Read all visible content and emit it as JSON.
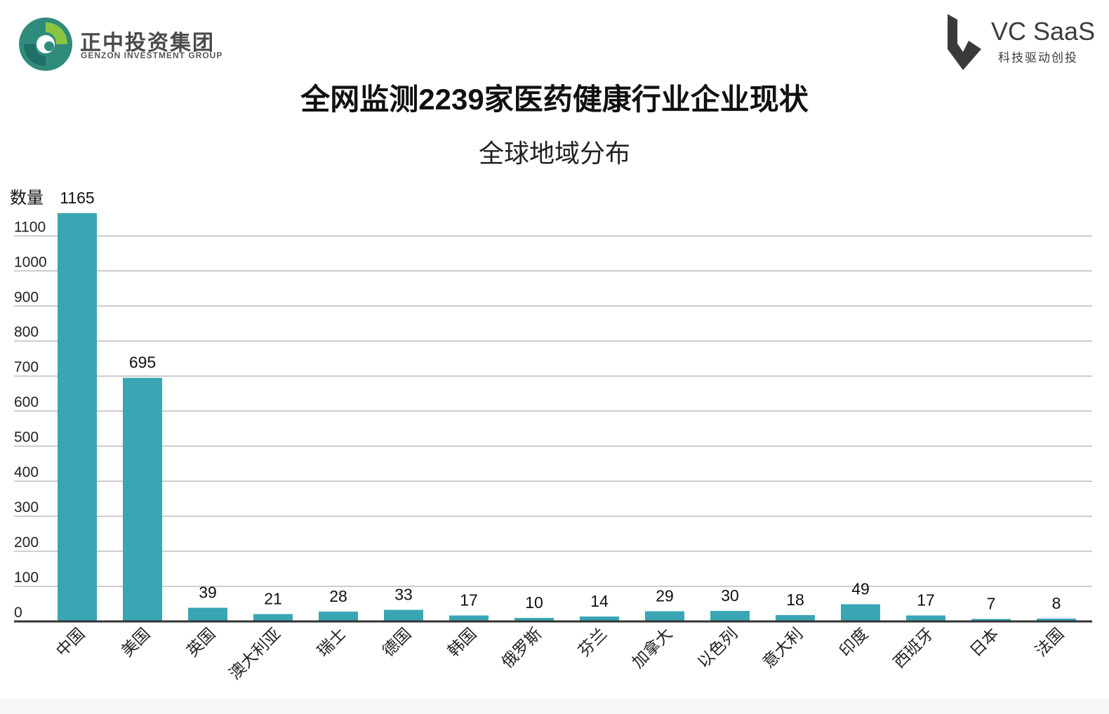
{
  "header": {
    "logo_left": {
      "name_cn": "正中投资集团",
      "name_en": "GENZON INVESTMENT GROUP",
      "icon": "genzon-swirl-logo-icon"
    },
    "logo_right": {
      "name": "VC SaaS",
      "sub": "科技驱动创投",
      "icon": "vc-saas-shield-logo-icon"
    },
    "title": "全网监测2239家医药健康行业企业现状",
    "subtitle": "全球地域分布"
  },
  "colors": {
    "bar": "#3aa6b4",
    "grid": "#bdbdbd",
    "axis": "#333333"
  },
  "chart_data": {
    "type": "bar",
    "ylabel": "数量",
    "ylim": [
      0,
      1165
    ],
    "yticks": [
      0,
      100,
      200,
      300,
      400,
      500,
      600,
      700,
      800,
      900,
      1000,
      1100
    ],
    "grid": true,
    "categories": [
      "中国",
      "美国",
      "英国",
      "澳大利亚",
      "瑞士",
      "德国",
      "韩国",
      "俄罗斯",
      "芬兰",
      "加拿大",
      "以色列",
      "意大利",
      "印度",
      "西班牙",
      "日本",
      "法国"
    ],
    "values": [
      1165,
      695,
      39,
      21,
      28,
      33,
      17,
      10,
      14,
      29,
      30,
      18,
      49,
      17,
      7,
      8
    ]
  }
}
